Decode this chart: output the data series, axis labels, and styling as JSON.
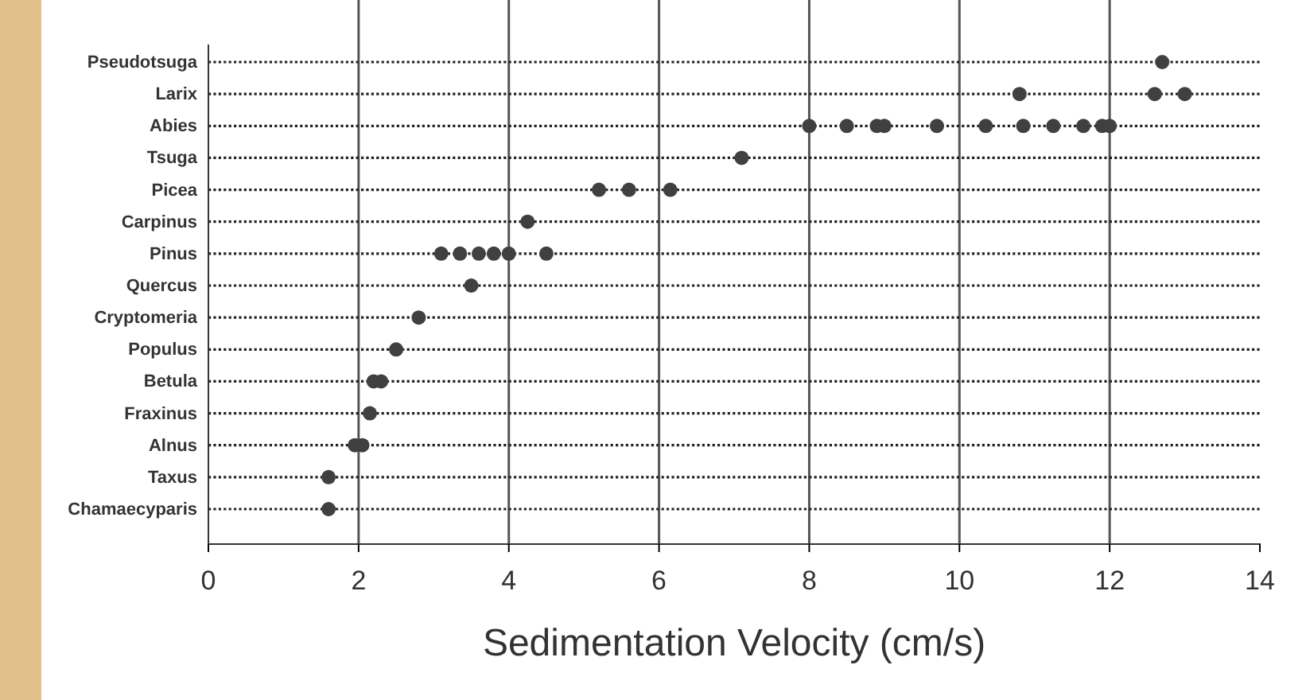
{
  "chart_data": {
    "type": "scatter",
    "orientation": "horizontal",
    "xlabel": "Sedimentation Velocity (cm/s)",
    "categories": [
      "Pseudotsuga",
      "Larix",
      "Abies",
      "Tsuga",
      "Picea",
      "Carpinus",
      "Pinus",
      "Quercus",
      "Cryptomeria",
      "Populus",
      "Betula",
      "Fraxinus",
      "Alnus",
      "Taxus",
      "Chamaecyparis"
    ],
    "series": [
      {
        "color": "#404040",
        "values": [
          12.7,
          10.8,
          8.0,
          7.1,
          5.2,
          4.25,
          3.1,
          3.5,
          2.8,
          2.5,
          2.2,
          2.15,
          1.95,
          1.6,
          1.6
        ]
      },
      {
        "color": "#404040",
        "values": [
          null,
          12.6,
          8.5,
          null,
          5.6,
          null,
          3.35,
          null,
          null,
          null,
          2.3,
          null,
          2.05,
          null,
          null
        ]
      },
      {
        "color": "#404040",
        "values": [
          null,
          13.0,
          8.9,
          null,
          6.15,
          null,
          3.6,
          null,
          null,
          null,
          null,
          null,
          null,
          null,
          null
        ]
      },
      {
        "color": "#404040",
        "values": [
          null,
          null,
          9.0,
          null,
          null,
          null,
          3.8,
          null,
          null,
          null,
          null,
          null,
          null,
          null,
          null
        ]
      },
      {
        "color": "#404040",
        "values": [
          null,
          null,
          9.7,
          null,
          null,
          null,
          4.0,
          null,
          null,
          null,
          null,
          null,
          null,
          null,
          null
        ]
      },
      {
        "color": "#404040",
        "values": [
          null,
          null,
          10.35,
          null,
          null,
          null,
          4.5,
          null,
          null,
          null,
          null,
          null,
          null,
          null,
          null
        ]
      },
      {
        "color": "#404040",
        "values": [
          null,
          null,
          10.85,
          null,
          null,
          null,
          null,
          null,
          null,
          null,
          null,
          null,
          null,
          null,
          null
        ]
      },
      {
        "color": "#404040",
        "values": [
          null,
          null,
          11.25,
          null,
          null,
          null,
          null,
          null,
          null,
          null,
          null,
          null,
          null,
          null,
          null
        ]
      },
      {
        "color": "#404040",
        "values": [
          null,
          null,
          11.65,
          null,
          null,
          null,
          null,
          null,
          null,
          null,
          null,
          null,
          null,
          null,
          null
        ]
      },
      {
        "color": "#404040",
        "values": [
          null,
          null,
          11.9,
          null,
          null,
          null,
          null,
          null,
          null,
          null,
          null,
          null,
          null,
          null,
          null
        ]
      },
      {
        "color": "#404040",
        "values": [
          null,
          null,
          12.0,
          null,
          null,
          null,
          null,
          null,
          null,
          null,
          null,
          null,
          null,
          null,
          null
        ]
      }
    ],
    "xlim": [
      0,
      14
    ],
    "xticks": [
      0,
      2,
      4,
      6,
      8,
      10,
      12,
      14
    ],
    "grid": true,
    "marker": "circle"
  }
}
